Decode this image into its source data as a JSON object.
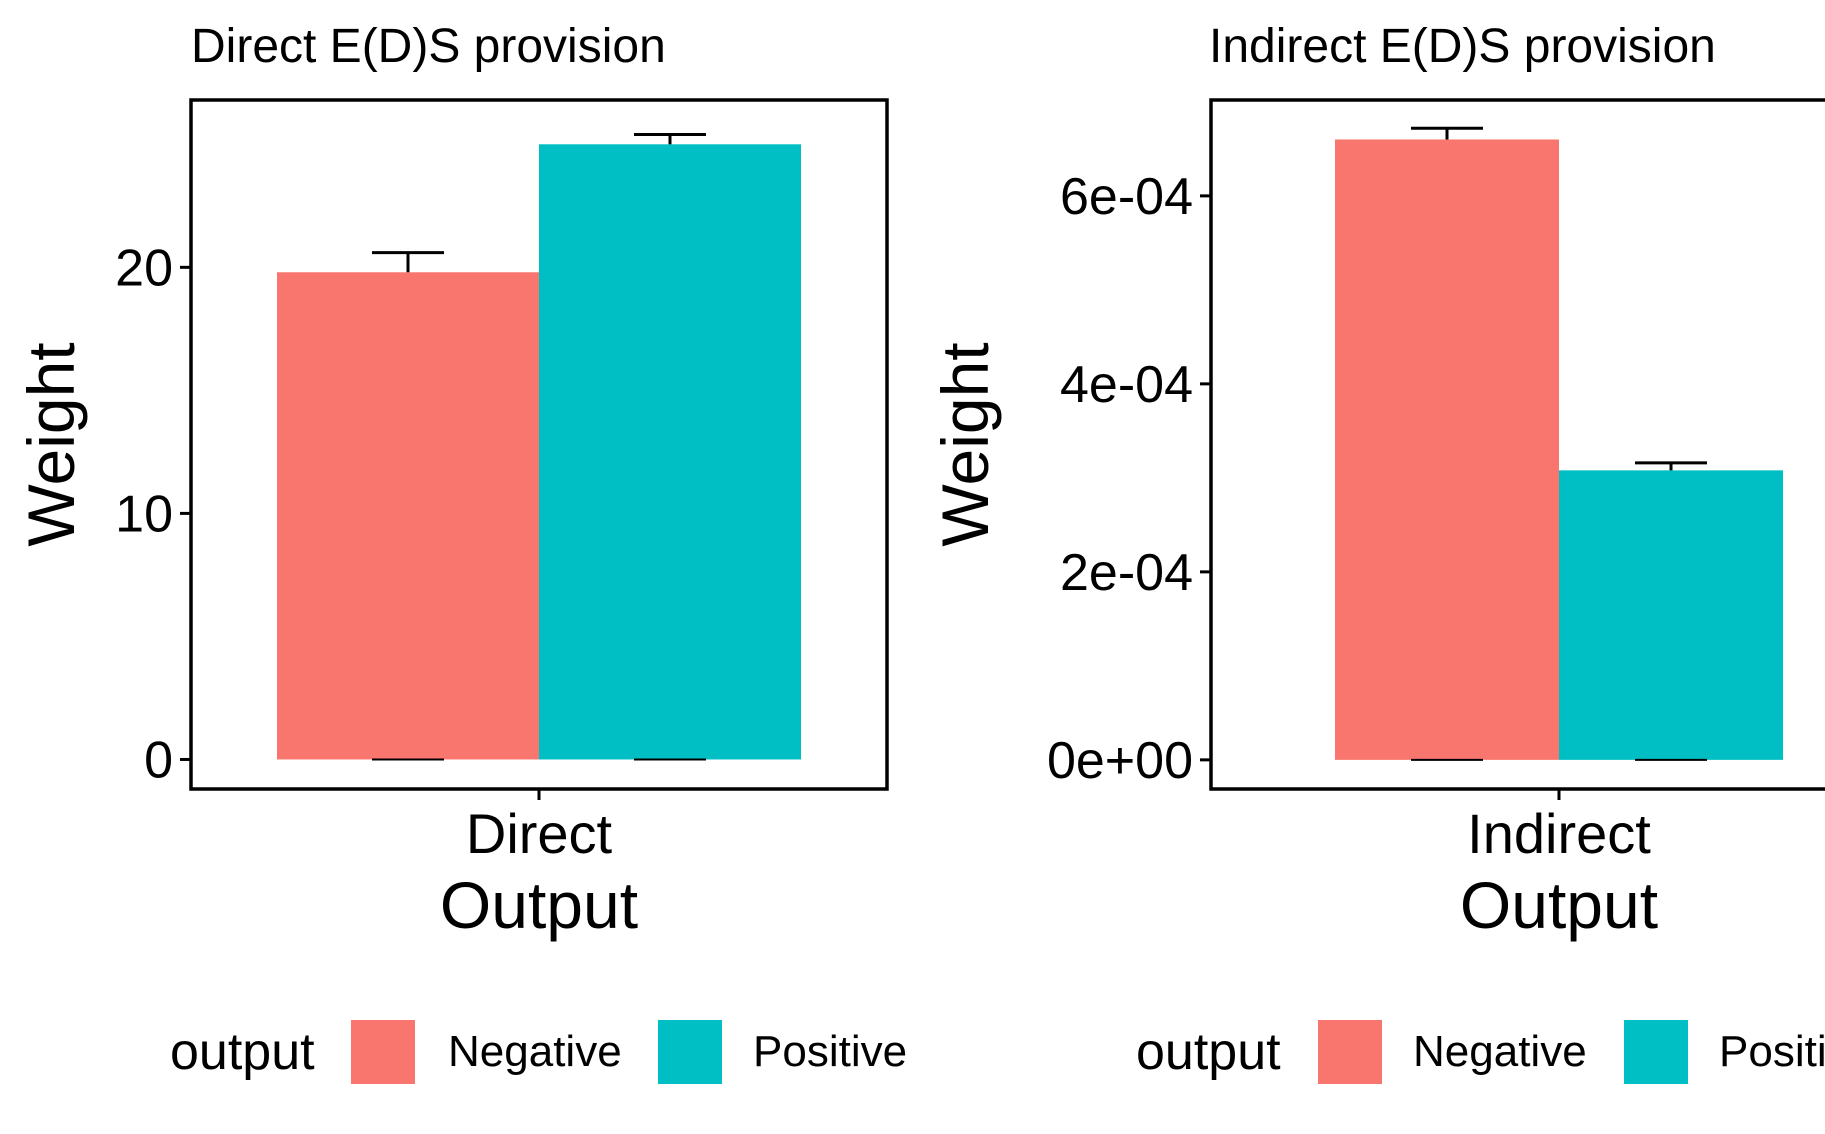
{
  "colors": {
    "negative": "#F8766D",
    "positive": "#00BFC4",
    "axis": "#000000",
    "background": "#FFFFFF"
  },
  "chart_data": [
    {
      "type": "bar",
      "title": "Direct E(D)S provision",
      "xlabel": "Output",
      "ylabel": "Weight",
      "categories": [
        "Direct"
      ],
      "ylim": [
        -1.2,
        26.8
      ],
      "yticks": [
        0,
        10,
        20
      ],
      "ytick_labels": [
        "0",
        "10",
        "20"
      ],
      "series": [
        {
          "name": "Negative",
          "values": [
            19.8
          ],
          "error": [
            0.8
          ]
        },
        {
          "name": "Positive",
          "values": [
            25.0
          ],
          "error": [
            0.4
          ]
        }
      ],
      "legend": {
        "title": "output",
        "position": "bottom",
        "entries": [
          "Negative",
          "Positive"
        ]
      },
      "grid": false
    },
    {
      "type": "bar",
      "title": "Indirect E(D)S provision",
      "xlabel": "Output",
      "ylabel": "Weight",
      "categories": [
        "Indirect"
      ],
      "ylim": [
        -3.1e-05,
        0.000702
      ],
      "yticks": [
        0,
        0.0002,
        0.0004,
        0.0006
      ],
      "ytick_labels": [
        "0e+00",
        "2e-04",
        "4e-04",
        "6e-04"
      ],
      "series": [
        {
          "name": "Negative",
          "values": [
            0.00066
          ],
          "error": [
            1.2e-05
          ]
        },
        {
          "name": "Positive",
          "values": [
            0.000308
          ],
          "error": [
            8e-06
          ]
        }
      ],
      "legend": {
        "title": "output",
        "position": "bottom",
        "entries": [
          "Negative",
          "Positive"
        ]
      },
      "grid": false
    }
  ]
}
